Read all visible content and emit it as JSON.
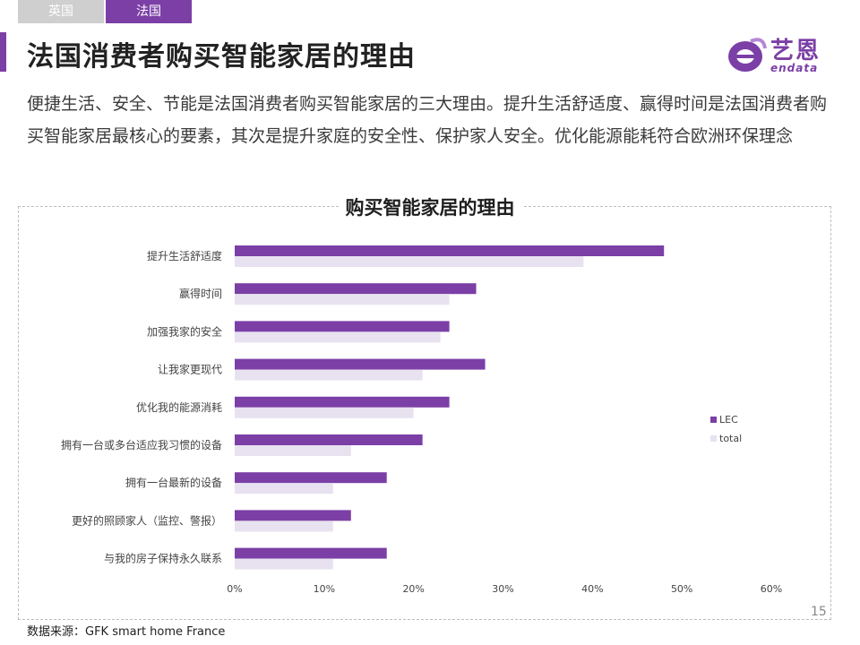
{
  "tabs": [
    {
      "label": "英国",
      "active": false
    },
    {
      "label": "法国",
      "active": true
    }
  ],
  "page_title": "法国消费者购买智能家居的理由",
  "logo": {
    "name": "艺恩",
    "sub": "endata"
  },
  "subtitle": "便捷生活、安全、节能是法国消费者购买智能家居的三大理由。提升生活舒适度、赢得时间是法国消费者购买智能家居最核心的要素，其次是提升家庭的安全性、保护家人安全。优化能源能耗符合欧洲环保理念",
  "colors": {
    "accent": "#7b3fa6",
    "lec": "#7b3fa6",
    "total": "#e8e2f0"
  },
  "chart_data": {
    "type": "bar",
    "orientation": "horizontal",
    "title": "购买智能家居的理由",
    "categories": [
      "提升生活舒适度",
      "赢得时间",
      "加强我家的安全",
      "让我家更现代",
      "优化我的能源消耗",
      "拥有一台或多台适应我习惯的设备",
      "拥有一台最新的设备",
      "更好的照顾家人（监控、警报）",
      "与我的房子保持永久联系"
    ],
    "series": [
      {
        "name": "LEC",
        "values": [
          48,
          27,
          24,
          28,
          24,
          21,
          17,
          13,
          17
        ]
      },
      {
        "name": "total",
        "values": [
          39,
          24,
          23,
          21,
          20,
          13,
          11,
          11,
          11
        ]
      }
    ],
    "xlim": [
      0,
      60
    ],
    "xticks": [
      0,
      10,
      20,
      30,
      40,
      50,
      60
    ],
    "tick_suffix": "%",
    "legend_position": "right",
    "grid": false
  },
  "page_number": "15",
  "source": "数据来源：GFK smart home France"
}
